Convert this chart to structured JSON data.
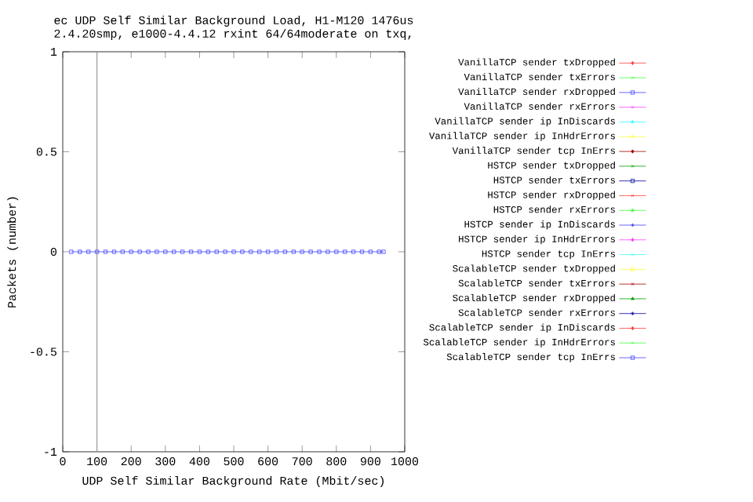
{
  "chart_data": {
    "type": "line",
    "title": "ec UDP Self Similar Background Load, H1-M120 1476us",
    "subtitle": "2.4.20smp, e1000-4.4.12 rxint 64/64moderate on txq,",
    "xlabel": "UDP Self Similar Background Rate (Mbit/sec)",
    "ylabel": "Packets (number)",
    "x": [
      25,
      50,
      75,
      100,
      125,
      150,
      175,
      200,
      225,
      250,
      275,
      300,
      325,
      350,
      375,
      400,
      425,
      450,
      475,
      500,
      525,
      550,
      575,
      600,
      625,
      650,
      675,
      700,
      725,
      750,
      775,
      800,
      825,
      850,
      875,
      900,
      925,
      938
    ],
    "xlim": [
      0,
      1000
    ],
    "xticks": [
      0,
      100,
      200,
      300,
      400,
      500,
      600,
      700,
      800,
      900,
      1000
    ],
    "ylim": [
      -1,
      1
    ],
    "yticks": [
      -1,
      -0.5,
      0,
      0.5,
      1
    ],
    "legend": "right",
    "line_style": "solid",
    "ref_lines": [
      {
        "axis": "x",
        "value": 100,
        "color": "#a0a0a0"
      }
    ],
    "series": [
      {
        "name": "VanillaTCP sender txDropped",
        "color": "#ff4040",
        "marker": "diamond",
        "values": [
          null,
          null,
          null,
          null,
          null,
          null,
          null,
          null,
          null,
          null,
          null,
          null,
          null,
          null,
          null,
          null,
          null,
          null,
          null,
          null,
          null,
          null,
          null,
          null,
          null,
          null,
          null,
          null,
          null,
          null,
          null,
          null,
          null,
          null,
          null,
          null,
          null,
          null
        ]
      },
      {
        "name": "VanillaTCP sender txErrors",
        "color": "#40ff40",
        "marker": "cross",
        "values": [
          null,
          null,
          null,
          null,
          null,
          null,
          null,
          null,
          null,
          null,
          null,
          null,
          null,
          null,
          null,
          null,
          null,
          null,
          null,
          null,
          null,
          null,
          null,
          null,
          null,
          null,
          null,
          null,
          null,
          null,
          null,
          null,
          null,
          null,
          null,
          null,
          null,
          null
        ]
      },
      {
        "name": "VanillaTCP sender rxDropped",
        "color": "#4040ff",
        "marker": "square",
        "values": [
          null,
          null,
          null,
          null,
          null,
          null,
          null,
          null,
          null,
          null,
          null,
          null,
          null,
          null,
          null,
          null,
          null,
          null,
          null,
          null,
          null,
          null,
          null,
          null,
          null,
          null,
          null,
          null,
          null,
          null,
          null,
          null,
          null,
          null,
          null,
          null,
          null,
          null
        ]
      },
      {
        "name": "VanillaTCP sender rxErrors",
        "color": "#ff40ff",
        "marker": "cross",
        "values": [
          null,
          null,
          null,
          null,
          null,
          null,
          null,
          null,
          null,
          null,
          null,
          null,
          null,
          null,
          null,
          null,
          null,
          null,
          null,
          null,
          null,
          null,
          null,
          null,
          null,
          null,
          null,
          null,
          null,
          null,
          null,
          null,
          null,
          null,
          null,
          null,
          null,
          null
        ]
      },
      {
        "name": "VanillaTCP sender ip InDiscards",
        "color": "#40ffff",
        "marker": "triangle",
        "values": [
          null,
          null,
          null,
          null,
          null,
          null,
          null,
          null,
          null,
          null,
          null,
          null,
          null,
          null,
          null,
          null,
          null,
          null,
          null,
          null,
          null,
          null,
          null,
          null,
          null,
          null,
          null,
          null,
          null,
          null,
          null,
          null,
          null,
          null,
          null,
          null,
          null,
          null
        ]
      },
      {
        "name": "VanillaTCP sender ip InHdrErrors",
        "color": "#ffff40",
        "marker": "star",
        "values": [
          null,
          null,
          null,
          null,
          null,
          null,
          null,
          null,
          null,
          null,
          null,
          null,
          null,
          null,
          null,
          null,
          null,
          null,
          null,
          null,
          null,
          null,
          null,
          null,
          null,
          null,
          null,
          null,
          null,
          null,
          null,
          null,
          null,
          null,
          null,
          null,
          null,
          null
        ]
      },
      {
        "name": "VanillaTCP sender tcp InErrs",
        "color": "#a00000",
        "marker": "diamond",
        "values": [
          null,
          null,
          null,
          null,
          null,
          null,
          null,
          null,
          null,
          null,
          null,
          null,
          null,
          null,
          null,
          null,
          null,
          null,
          null,
          null,
          null,
          null,
          null,
          null,
          null,
          null,
          null,
          null,
          null,
          null,
          null,
          null,
          null,
          null,
          null,
          null,
          null,
          null
        ]
      },
      {
        "name": "HSTCP sender txDropped",
        "color": "#00a000",
        "marker": "cross",
        "values": [
          null,
          null,
          null,
          null,
          null,
          null,
          null,
          null,
          null,
          null,
          null,
          null,
          null,
          null,
          null,
          null,
          null,
          null,
          null,
          null,
          null,
          null,
          null,
          null,
          null,
          null,
          null,
          null,
          null,
          null,
          null,
          null,
          null,
          null,
          null,
          null,
          null,
          null
        ]
      },
      {
        "name": "HSTCP sender txErrors",
        "color": "#0000a0",
        "marker": "square",
        "values": [
          null,
          null,
          null,
          null,
          null,
          null,
          null,
          null,
          null,
          null,
          null,
          null,
          null,
          null,
          null,
          null,
          null,
          null,
          null,
          null,
          null,
          null,
          null,
          null,
          null,
          null,
          null,
          null,
          null,
          null,
          null,
          null,
          null,
          null,
          null,
          null,
          null,
          null
        ]
      },
      {
        "name": "HSTCP sender rxDropped",
        "color": "#ff4040",
        "marker": "cross",
        "values": [
          null,
          null,
          null,
          null,
          null,
          null,
          null,
          null,
          null,
          null,
          null,
          null,
          null,
          null,
          null,
          null,
          null,
          null,
          null,
          null,
          null,
          null,
          null,
          null,
          null,
          null,
          null,
          null,
          null,
          null,
          null,
          null,
          null,
          null,
          null,
          null,
          null,
          null
        ]
      },
      {
        "name": "HSTCP sender rxErrors",
        "color": "#40ff40",
        "marker": "triangle",
        "values": [
          null,
          null,
          null,
          null,
          null,
          null,
          null,
          null,
          null,
          null,
          null,
          null,
          null,
          null,
          null,
          null,
          null,
          null,
          null,
          null,
          null,
          null,
          null,
          null,
          null,
          null,
          null,
          null,
          null,
          null,
          null,
          null,
          null,
          null,
          null,
          null,
          null,
          null
        ]
      },
      {
        "name": "HSTCP sender ip InDiscards",
        "color": "#4040ff",
        "marker": "star",
        "values": [
          null,
          null,
          null,
          null,
          null,
          null,
          null,
          null,
          null,
          null,
          null,
          null,
          null,
          null,
          null,
          null,
          null,
          null,
          null,
          null,
          null,
          null,
          null,
          null,
          null,
          null,
          null,
          null,
          null,
          null,
          null,
          null,
          null,
          null,
          null,
          null,
          null,
          null
        ]
      },
      {
        "name": "HSTCP sender ip InHdrErrors",
        "color": "#ff40ff",
        "marker": "diamond",
        "values": [
          null,
          null,
          null,
          null,
          null,
          null,
          null,
          null,
          null,
          null,
          null,
          null,
          null,
          null,
          null,
          null,
          null,
          null,
          null,
          null,
          null,
          null,
          null,
          null,
          null,
          null,
          null,
          null,
          null,
          null,
          null,
          null,
          null,
          null,
          null,
          null,
          null,
          null
        ]
      },
      {
        "name": "HSTCP sender tcp InErrs",
        "color": "#40ffff",
        "marker": "cross",
        "values": [
          null,
          null,
          null,
          null,
          null,
          null,
          null,
          null,
          null,
          null,
          null,
          null,
          null,
          null,
          null,
          null,
          null,
          null,
          null,
          null,
          null,
          null,
          null,
          null,
          null,
          null,
          null,
          null,
          null,
          null,
          null,
          null,
          null,
          null,
          null,
          null,
          null,
          null
        ]
      },
      {
        "name": "ScalableTCP sender txDropped",
        "color": "#ffff40",
        "marker": "square",
        "values": [
          null,
          null,
          null,
          null,
          null,
          null,
          null,
          null,
          null,
          null,
          null,
          null,
          null,
          null,
          null,
          null,
          null,
          null,
          null,
          null,
          null,
          null,
          null,
          null,
          null,
          null,
          null,
          null,
          null,
          null,
          null,
          null,
          null,
          null,
          null,
          null,
          null,
          null
        ]
      },
      {
        "name": "ScalableTCP sender txErrors",
        "color": "#a00000",
        "marker": "cross",
        "values": [
          null,
          null,
          null,
          null,
          null,
          null,
          null,
          null,
          null,
          null,
          null,
          null,
          null,
          null,
          null,
          null,
          null,
          null,
          null,
          null,
          null,
          null,
          null,
          null,
          null,
          null,
          null,
          null,
          null,
          null,
          null,
          null,
          null,
          null,
          null,
          null,
          null,
          null
        ]
      },
      {
        "name": "ScalableTCP sender rxDropped",
        "color": "#00a000",
        "marker": "triangle",
        "values": [
          null,
          null,
          null,
          null,
          null,
          null,
          null,
          null,
          null,
          null,
          null,
          null,
          null,
          null,
          null,
          null,
          null,
          null,
          null,
          null,
          null,
          null,
          null,
          null,
          null,
          null,
          null,
          null,
          null,
          null,
          null,
          null,
          null,
          null,
          null,
          null,
          null,
          null
        ]
      },
      {
        "name": "ScalableTCP sender rxErrors",
        "color": "#0000a0",
        "marker": "star",
        "values": [
          null,
          null,
          null,
          null,
          null,
          null,
          null,
          null,
          null,
          null,
          null,
          null,
          null,
          null,
          null,
          null,
          null,
          null,
          null,
          null,
          null,
          null,
          null,
          null,
          null,
          null,
          null,
          null,
          null,
          null,
          null,
          null,
          null,
          null,
          null,
          null,
          null,
          null
        ]
      },
      {
        "name": "ScalableTCP sender ip InDiscards",
        "color": "#ff4040",
        "marker": "diamond",
        "values": [
          null,
          null,
          null,
          null,
          null,
          null,
          null,
          null,
          null,
          null,
          null,
          null,
          null,
          null,
          null,
          null,
          null,
          null,
          null,
          null,
          null,
          null,
          null,
          null,
          null,
          null,
          null,
          null,
          null,
          null,
          null,
          null,
          null,
          null,
          null,
          null,
          null,
          null
        ]
      },
      {
        "name": "ScalableTCP sender ip InHdrErrors",
        "color": "#40ff40",
        "marker": "cross",
        "values": [
          null,
          null,
          null,
          null,
          null,
          null,
          null,
          null,
          null,
          null,
          null,
          null,
          null,
          null,
          null,
          null,
          null,
          null,
          null,
          null,
          null,
          null,
          null,
          null,
          null,
          null,
          null,
          null,
          null,
          null,
          null,
          null,
          null,
          null,
          null,
          null,
          null,
          null
        ]
      },
      {
        "name": "ScalableTCP sender tcp InErrs",
        "color": "#4040ff",
        "marker": "square",
        "values": [
          0,
          0,
          0,
          0,
          0,
          0,
          0,
          0,
          0,
          0,
          0,
          0,
          0,
          0,
          0,
          0,
          0,
          0,
          0,
          0,
          0,
          0,
          0,
          0,
          0,
          0,
          0,
          0,
          0,
          0,
          0,
          0,
          0,
          0,
          0,
          0,
          0,
          0
        ]
      }
    ]
  }
}
